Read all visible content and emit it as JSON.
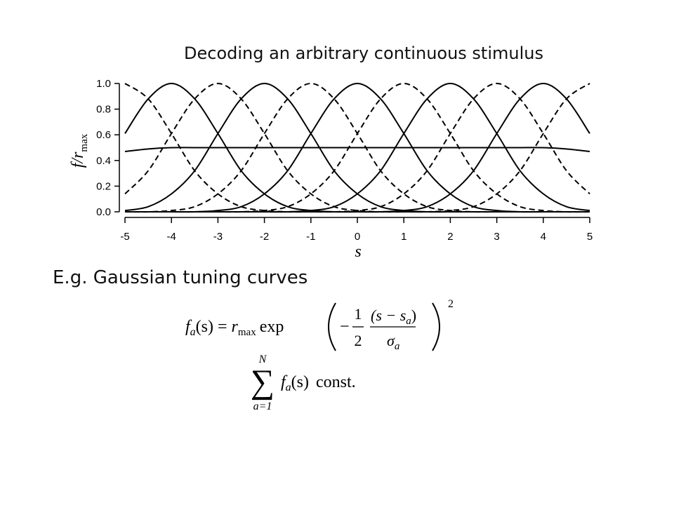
{
  "chart_data": {
    "type": "line",
    "title": "Decoding an arbitrary continuous stimulus",
    "x_label": "s",
    "y_label": "f/r",
    "y_label_sub": "max",
    "x": [
      -5,
      -4.5,
      -4,
      -3.5,
      -3,
      -2.5,
      -2,
      -1.5,
      -1,
      -0.5,
      0,
      0.5,
      1,
      1.5,
      2,
      2.5,
      3,
      3.5,
      4,
      4.5,
      5
    ],
    "xlim": [
      -5,
      5
    ],
    "xticks": [
      -5,
      -4,
      -3,
      -2,
      -1,
      0,
      1,
      2,
      3,
      4,
      5
    ],
    "ylim": [
      0,
      1
    ],
    "yticks": [
      {
        "value": 0,
        "label": "0.0"
      },
      {
        "value": 0.2,
        "label": "0.2"
      },
      {
        "value": 0.4,
        "label": "0.4"
      },
      {
        "value": 0.6,
        "label": "0.6"
      },
      {
        "value": 0.8,
        "label": "0.8"
      },
      {
        "value": 1,
        "label": "1.0"
      }
    ],
    "series": [
      {
        "color": "#000000",
        "dashed": true,
        "values": [
          1,
          0.88,
          0.61,
          0.32,
          0.14,
          0.04,
          0.01,
          0,
          0,
          0,
          0,
          0,
          0,
          0,
          0,
          0,
          0,
          0,
          0,
          0,
          0
        ]
      },
      {
        "color": "#000000",
        "dashed": false,
        "values": [
          0.61,
          0.88,
          1,
          0.88,
          0.61,
          0.32,
          0.14,
          0.04,
          0.01,
          0,
          0,
          0,
          0,
          0,
          0,
          0,
          0,
          0,
          0,
          0,
          0
        ]
      },
      {
        "color": "#000000",
        "dashed": true,
        "values": [
          0.14,
          0.32,
          0.61,
          0.88,
          1,
          0.88,
          0.61,
          0.32,
          0.14,
          0.04,
          0.01,
          0,
          0,
          0,
          0,
          0,
          0,
          0,
          0,
          0,
          0
        ]
      },
      {
        "color": "#000000",
        "dashed": false,
        "values": [
          0.01,
          0.04,
          0.14,
          0.32,
          0.61,
          0.88,
          1,
          0.88,
          0.61,
          0.32,
          0.14,
          0.04,
          0.01,
          0,
          0,
          0,
          0,
          0,
          0,
          0,
          0
        ]
      },
      {
        "color": "#000000",
        "dashed": true,
        "values": [
          0,
          0,
          0.01,
          0.04,
          0.14,
          0.32,
          0.61,
          0.88,
          1,
          0.88,
          0.61,
          0.32,
          0.14,
          0.04,
          0.01,
          0,
          0,
          0,
          0,
          0,
          0
        ]
      },
      {
        "color": "#000000",
        "dashed": false,
        "values": [
          0,
          0,
          0,
          0,
          0.01,
          0.04,
          0.14,
          0.32,
          0.61,
          0.88,
          1,
          0.88,
          0.61,
          0.32,
          0.14,
          0.04,
          0.01,
          0,
          0,
          0,
          0
        ]
      },
      {
        "color": "#000000",
        "dashed": true,
        "values": [
          0,
          0,
          0,
          0,
          0,
          0,
          0.01,
          0.04,
          0.14,
          0.32,
          0.61,
          0.88,
          1,
          0.88,
          0.61,
          0.32,
          0.14,
          0.04,
          0.01,
          0,
          0
        ]
      },
      {
        "color": "#000000",
        "dashed": false,
        "values": [
          0,
          0,
          0,
          0,
          0,
          0,
          0,
          0,
          0.01,
          0.04,
          0.14,
          0.32,
          0.61,
          0.88,
          1,
          0.88,
          0.61,
          0.32,
          0.14,
          0.04,
          0.01
        ]
      },
      {
        "color": "#000000",
        "dashed": true,
        "values": [
          0,
          0,
          0,
          0,
          0,
          0,
          0,
          0,
          0,
          0,
          0.01,
          0.04,
          0.14,
          0.32,
          0.61,
          0.88,
          1,
          0.88,
          0.61,
          0.32,
          0.14
        ]
      },
      {
        "color": "#000000",
        "dashed": false,
        "values": [
          0,
          0,
          0,
          0,
          0,
          0,
          0,
          0,
          0,
          0,
          0,
          0,
          0.01,
          0.04,
          0.14,
          0.32,
          0.61,
          0.88,
          1,
          0.88,
          0.61
        ]
      },
      {
        "color": "#000000",
        "dashed": true,
        "values": [
          0,
          0,
          0,
          0,
          0,
          0,
          0,
          0,
          0,
          0,
          0,
          0,
          0,
          0,
          0.01,
          0.04,
          0.14,
          0.32,
          0.61,
          0.88,
          1
        ]
      },
      {
        "color": "#000000",
        "dashed": false,
        "values": [
          0.47,
          0.49,
          0.5,
          0.5,
          0.5,
          0.5,
          0.5,
          0.5,
          0.5,
          0.5,
          0.5,
          0.5,
          0.5,
          0.5,
          0.5,
          0.5,
          0.5,
          0.5,
          0.5,
          0.49,
          0.47
        ]
      }
    ]
  },
  "caption": "E.g. Gaussian tuning curves",
  "formula_1": {
    "f": "f",
    "f_sub": "a",
    "args": "(s) =",
    "r": "r",
    "r_sub": "max",
    "exp": "exp",
    "minus": "−",
    "num": "1",
    "den": "2",
    "frac_num": "(s − s",
    "frac_num_sub": "a",
    "frac_num_close": ")",
    "sigma": "σ",
    "sigma_sub": "a",
    "power": "2"
  },
  "formula_2": {
    "sum_top": "N",
    "sum": "∑",
    "sum_bottom": "a=1",
    "f": "f",
    "f_sub": "a",
    "args": "(s)",
    "const": "const."
  }
}
